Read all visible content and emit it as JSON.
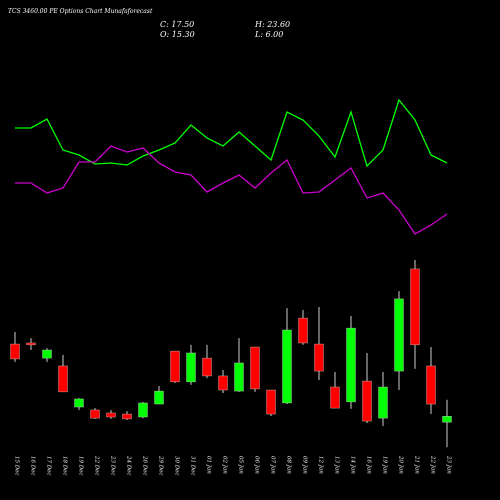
{
  "chart_data": {
    "type": "candlestick",
    "title": "TCS 3460.00 PE Options Chart Munafaforecast",
    "info": {
      "close": "C: 17.50",
      "open": "O: 15.30",
      "high": "H: 23.60",
      "low": "L: 6.00"
    },
    "categories": [
      "15 Dec",
      "16 Dec",
      "17 Dec",
      "18 Dec",
      "19 Dec",
      "22 Dec",
      "23 Dec",
      "24 Dec",
      "26 Dec",
      "29 Dec",
      "30 Dec",
      "31 Dec",
      "01 Jan",
      "02 Jan",
      "05 Jan",
      "06 Jan",
      "07 Jan",
      "08 Jan",
      "09 Jan",
      "12 Jan",
      "13 Jan",
      "14 Jan",
      "16 Jan",
      "19 Jan",
      "20 Jan",
      "21 Jan",
      "22 Jan",
      "23 Jan"
    ],
    "open": [
      44.2,
      44.6,
      39.0,
      36.1,
      20.9,
      19.8,
      18.7,
      18.3,
      17.2,
      22.0,
      41.6,
      30.2,
      39.0,
      32.4,
      26.8,
      43.1,
      27.2,
      22.4,
      53.8,
      44.2,
      28.3,
      22.8,
      30.5,
      16.8,
      34.2,
      72.0,
      36.1,
      15.3
    ],
    "high": [
      48.7,
      46.4,
      42.7,
      40.2,
      24.2,
      20.5,
      19.8,
      19.4,
      22.8,
      28.7,
      41.6,
      43.9,
      43.9,
      34.6,
      46.4,
      43.1,
      27.2,
      57.5,
      56.8,
      57.9,
      33.9,
      54.6,
      40.9,
      33.9,
      63.8,
      75.3,
      43.1,
      23.6
    ],
    "low": [
      37.6,
      42.0,
      37.6,
      26.5,
      19.8,
      16.5,
      16.5,
      16.1,
      16.8,
      22.0,
      29.8,
      29.1,
      31.6,
      26.1,
      26.5,
      26.5,
      17.6,
      22.0,
      43.9,
      30.9,
      20.5,
      20.2,
      15.0,
      13.9,
      27.2,
      35.0,
      18.3,
      6.0
    ],
    "close": [
      38.7,
      43.9,
      42.0,
      26.5,
      23.9,
      16.8,
      17.2,
      16.5,
      22.4,
      26.8,
      30.2,
      40.9,
      32.4,
      27.2,
      37.2,
      27.6,
      18.3,
      49.4,
      44.6,
      34.2,
      20.5,
      50.1,
      15.7,
      28.3,
      60.9,
      43.9,
      22.0,
      17.5
    ],
    "up_color": "#00ff00",
    "down_color": "#ff0000",
    "ylim": [
      5,
      79
    ],
    "lines_ylim": [
      0,
      100
    ],
    "lines": [
      {
        "color": "#00ff00",
        "values": [
          66,
          66,
          70.5,
          55,
          52.5,
          48,
          48.5,
          47.5,
          52,
          55,
          58.5,
          67.5,
          61,
          57,
          64,
          57,
          50,
          74,
          70,
          62,
          51.5,
          74,
          47,
          55,
          80,
          70,
          52.5,
          48.5
        ]
      },
      {
        "color": "#cc00cc",
        "values": [
          38.5,
          38.5,
          33.5,
          36,
          49,
          49,
          57,
          54,
          56,
          48.5,
          44,
          42.5,
          34,
          38.5,
          42.5,
          36,
          43.5,
          50,
          33.5,
          34,
          40,
          46,
          31,
          33.5,
          25,
          13,
          17.5,
          23
        ]
      }
    ]
  }
}
